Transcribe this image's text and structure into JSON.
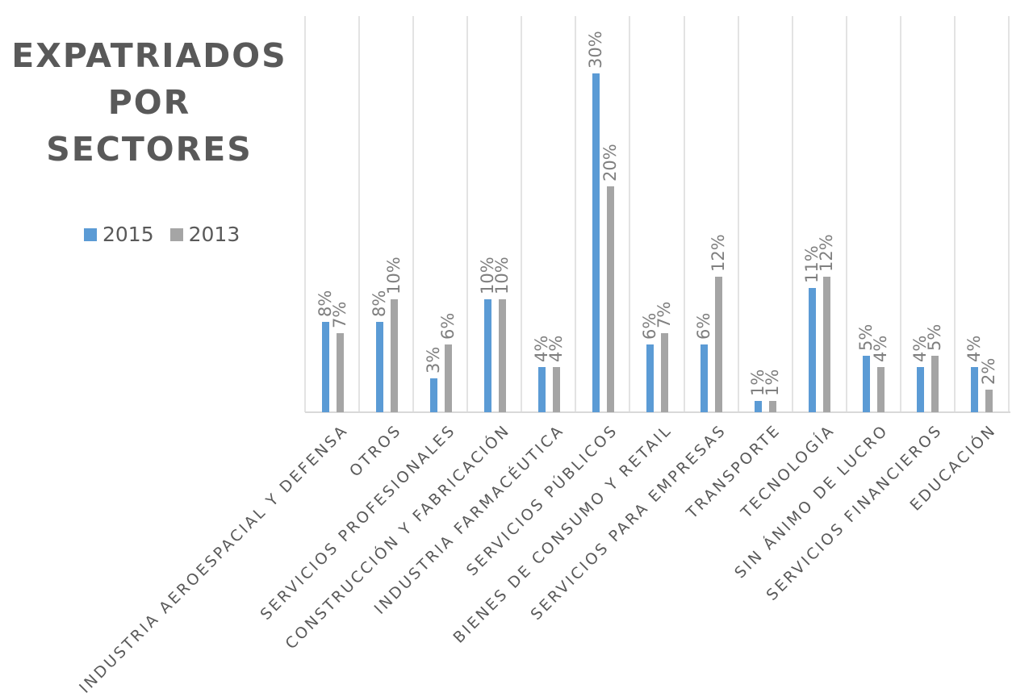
{
  "title_lines": [
    "EXPATRIADOS",
    "POR",
    "SECTORES"
  ],
  "legend": [
    {
      "label": "2015",
      "color": "#5B9BD5"
    },
    {
      "label": "2013",
      "color": "#A5A5A5"
    }
  ],
  "chart_data": {
    "type": "bar",
    "title": "EXPATRIADOS POR SECTORES",
    "xlabel": "",
    "ylabel": "",
    "ylim": [
      0,
      35
    ],
    "grid": "vertical category separators",
    "legend_position": "left",
    "categories": [
      "…ACIAL Y DEFENSA",
      "OTROS",
      "…S PROFESIONALES",
      "…N Y FABRICACIÓN",
      "…A FARMACÉUTICA",
      "…RVICIOS PÚBLICOS",
      "…ONSUMO Y RETAIL",
      "… PARA EMPRESAS",
      "TRANSPORTE",
      "TECNOLOGÍA",
      "…ÁNIMO DE LUCRO",
      "…IOS FINANCIEROS",
      "EDUCACIÓN"
    ],
    "series": [
      {
        "name": "2015",
        "color": "#5B9BD5",
        "values": [
          8,
          8,
          3,
          10,
          4,
          30,
          6,
          6,
          1,
          11,
          5,
          4,
          4
        ],
        "labels": [
          "8%",
          "8%",
          "3%",
          "10%",
          "4%",
          "30%",
          "6%",
          "6%",
          "1%",
          "11%",
          "5%",
          "4%",
          "4%"
        ]
      },
      {
        "name": "2013",
        "color": "#A5A5A5",
        "values": [
          7,
          10,
          6,
          10,
          4,
          20,
          7,
          12,
          1,
          12,
          4,
          5,
          2
        ],
        "labels": [
          "7%",
          "10%",
          "6%",
          "10%",
          "4%",
          "20%",
          "7%",
          "12%",
          "1%",
          "12%",
          "4%",
          "5%",
          "2%"
        ]
      }
    ]
  }
}
